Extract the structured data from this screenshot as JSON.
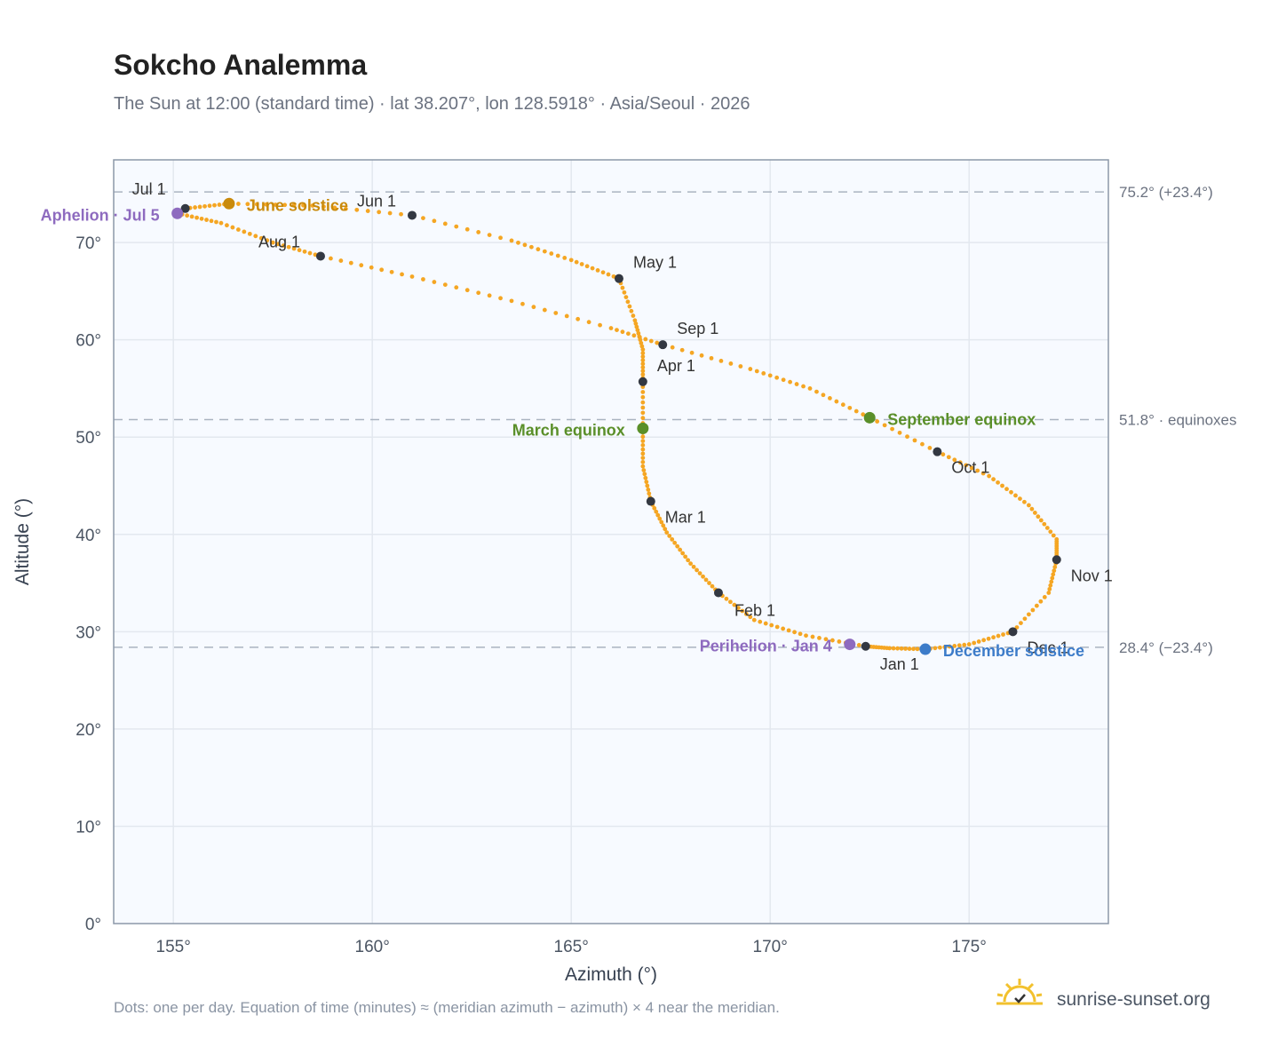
{
  "chart_data": {
    "type": "scatter",
    "title": "Sokcho Analemma",
    "subtitle": "The Sun at 12:00 (standard time) · lat 38.207°, lon 128.5918° · Asia/Seoul · 2026",
    "xlabel": "Azimuth (°)",
    "ylabel": "Altitude (°)",
    "xlim": [
      153.5,
      178.5
    ],
    "ylim": [
      0,
      78.5
    ],
    "x_ticks": [
      155,
      160,
      165,
      170,
      175
    ],
    "x_tick_labels": [
      "155°",
      "160°",
      "165°",
      "170°",
      "175°"
    ],
    "y_ticks": [
      0,
      10,
      20,
      30,
      40,
      50,
      60,
      70
    ],
    "y_tick_labels": [
      "0°",
      "10°",
      "20°",
      "30°",
      "40°",
      "50°",
      "60°",
      "70°"
    ],
    "grid": true,
    "reference_lines": [
      {
        "y": 75.2,
        "label": "75.2° (+23.4°)"
      },
      {
        "y": 51.8,
        "label": "51.8° · equinoxes"
      },
      {
        "y": 28.4,
        "label": "28.4° (−23.4°)"
      }
    ],
    "series": [
      {
        "points": [
          [
            172.4,
            28.5
          ],
          [
            170.9,
            29.6
          ],
          [
            169.6,
            31.2
          ],
          [
            168.7,
            34.0
          ],
          [
            168.0,
            37.0
          ],
          [
            167.4,
            40.2
          ],
          [
            167.0,
            43.4
          ],
          [
            166.8,
            47.0
          ],
          [
            166.8,
            50.9
          ],
          [
            166.8,
            55.7
          ],
          [
            166.8,
            59.0
          ],
          [
            166.6,
            62.0
          ],
          [
            166.2,
            66.3
          ],
          [
            165.0,
            68.2
          ],
          [
            163.5,
            70.2
          ],
          [
            161.0,
            72.8
          ],
          [
            158.5,
            73.8
          ],
          [
            156.4,
            74.0
          ],
          [
            155.3,
            73.5
          ],
          [
            155.1,
            73.0
          ],
          [
            156.2,
            72.0
          ],
          [
            157.5,
            70.0
          ],
          [
            158.7,
            68.6
          ],
          [
            161.0,
            66.5
          ],
          [
            163.5,
            64.0
          ],
          [
            166.0,
            61.2
          ],
          [
            167.3,
            59.5
          ],
          [
            169.5,
            57.0
          ],
          [
            171.0,
            55.0
          ],
          [
            172.5,
            52.0
          ],
          [
            174.2,
            48.5
          ],
          [
            175.5,
            46.0
          ],
          [
            176.5,
            43.0
          ],
          [
            177.2,
            39.5
          ],
          [
            177.2,
            37.4
          ],
          [
            177.0,
            34.0
          ],
          [
            176.1,
            30.0
          ],
          [
            175.0,
            28.7
          ],
          [
            173.9,
            28.2
          ],
          [
            173.0,
            28.3
          ],
          [
            172.4,
            28.5
          ]
        ]
      }
    ],
    "month_markers": [
      {
        "label": "Jan 1",
        "x": 172.4,
        "y": 28.5
      },
      {
        "label": "Feb 1",
        "x": 168.7,
        "y": 34.0
      },
      {
        "label": "Mar 1",
        "x": 167.0,
        "y": 43.4
      },
      {
        "label": "Apr 1",
        "x": 166.8,
        "y": 55.7
      },
      {
        "label": "May 1",
        "x": 166.2,
        "y": 66.3
      },
      {
        "label": "Jun 1",
        "x": 161.0,
        "y": 72.8
      },
      {
        "label": "Jul 1",
        "x": 155.3,
        "y": 73.5
      },
      {
        "label": "Aug 1",
        "x": 158.7,
        "y": 68.6
      },
      {
        "label": "Sep 1",
        "x": 167.3,
        "y": 59.5
      },
      {
        "label": "Oct 1",
        "x": 174.2,
        "y": 48.5
      },
      {
        "label": "Nov 1",
        "x": 177.2,
        "y": 37.4
      },
      {
        "label": "Dec 1",
        "x": 176.1,
        "y": 30.0
      }
    ],
    "events": [
      {
        "label": "June solstice",
        "x": 156.4,
        "y": 74.0,
        "color": "#c98a0b"
      },
      {
        "label": "Aphelion · Jul 5",
        "x": 155.1,
        "y": 73.0,
        "color": "#8e6bbf"
      },
      {
        "label": "March equinox",
        "x": 166.8,
        "y": 50.9,
        "color": "#5a8f29"
      },
      {
        "label": "September equinox",
        "x": 172.5,
        "y": 52.0,
        "color": "#5a8f29"
      },
      {
        "label": "Perihelion · Jan 4",
        "x": 172.0,
        "y": 28.7,
        "color": "#8e6bbf"
      },
      {
        "label": "December solstice",
        "x": 173.9,
        "y": 28.2,
        "color": "#3d7cc9"
      }
    ],
    "curve_color": "#f5a623",
    "note": "Dots: one per day. Equation of time (minutes) ≈ (meridian azimuth − azimuth) × 4 near the meridian."
  },
  "brand": {
    "name": "sunrise-sunset.org"
  }
}
